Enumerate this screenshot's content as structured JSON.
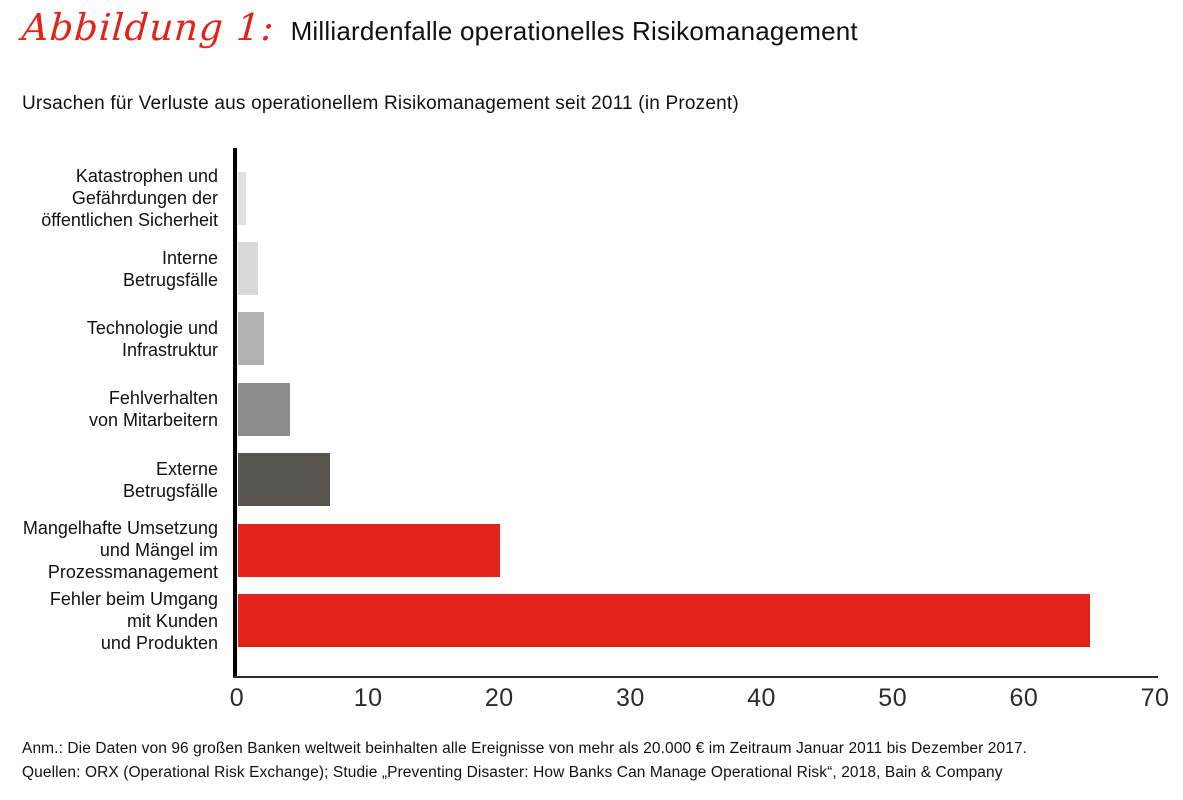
{
  "header": {
    "figure_label": "Abbildung 1:",
    "title": "Milliardenfalle operationelles Risikomanagement"
  },
  "subtitle": "Ursachen für Verluste aus operationellem Risikomanagement seit 2011 (in Prozent)",
  "chart_data": {
    "type": "bar",
    "orientation": "horizontal",
    "title": "Milliardenfalle operationelles Risikomanagement",
    "subtitle": "Ursachen für Verluste aus operationellem Risikomanagement seit 2011 (in Prozent)",
    "categories": [
      "Katastrophen und\nGefährdungen der\nöffentlichen Sicherheit",
      "Interne\nBetrugsfälle",
      "Technologie und\nInfrastruktur",
      "Fehlverhalten\nvon Mitarbeitern",
      "Externe\nBetrugsfälle",
      "Mangelhafte Umsetzung\nund Mängel im\nProzessmanagement",
      "Fehler beim Umgang\nmit Kunden\nund Produkten"
    ],
    "values": [
      0.5,
      1.5,
      2,
      4,
      7,
      20,
      65
    ],
    "bar_colors": [
      "#e0e0e0",
      "#d9d9d9",
      "#b1b1b1",
      "#8c8c8c",
      "#57534e",
      "#e2231a",
      "#e2231a"
    ],
    "unit": "Prozent",
    "xlim": [
      0,
      70
    ],
    "x_ticks": [
      0,
      10,
      20,
      30,
      40,
      50,
      60,
      70
    ],
    "grid": false,
    "legend_position": "none"
  },
  "footer": {
    "note": "Anm.: Die Daten von 96 großen Banken weltweit beinhalten alle Ereignisse von mehr als 20.000 € im Zeitraum Januar 2011 bis Dezember 2017.",
    "source": "Quellen: ORX (Operational Risk Exchange); Studie „Preventing Disaster: How Banks Can Manage Operational Risk“, 2018, Bain & Company"
  },
  "colors": {
    "accent_red": "#e2231a",
    "axis": "#000000",
    "tick_label": "#2b2b2b",
    "text": "#111111"
  }
}
